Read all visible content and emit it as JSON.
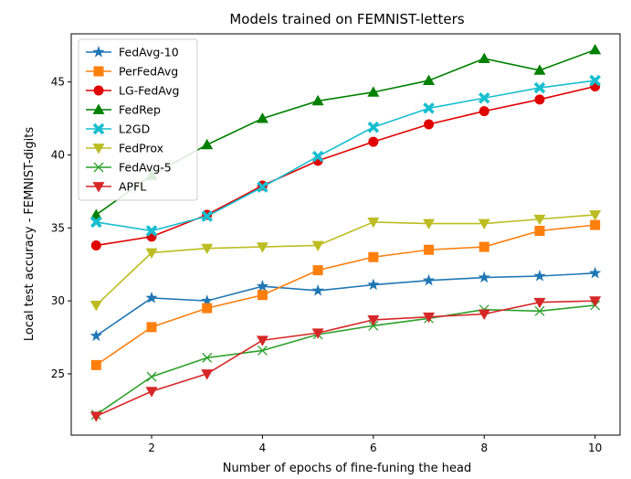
{
  "chart_data": {
    "type": "line",
    "title": "Models trained on FEMNIST-letters",
    "xlabel": "Number of epochs of fine-funing the head",
    "ylabel": "Local test accuracy - FEMNIST-digits",
    "x": [
      1,
      2,
      3,
      4,
      5,
      6,
      7,
      8,
      9,
      10
    ],
    "xlim": [
      0.55,
      10.45
    ],
    "ylim": [
      20.8,
      48.3
    ],
    "xticks": [
      2,
      4,
      6,
      8,
      10
    ],
    "yticks": [
      25,
      30,
      35,
      40,
      45
    ],
    "grid": false,
    "legend_position": "top-left",
    "series": [
      {
        "name": "FedAvg-10",
        "color": "#1f77b4",
        "marker": "star",
        "values": [
          27.6,
          30.2,
          30.0,
          31.0,
          30.7,
          31.1,
          31.4,
          31.6,
          31.7,
          31.9
        ]
      },
      {
        "name": "PerFedAvg",
        "color": "#ff7f0e",
        "marker": "square",
        "values": [
          25.6,
          28.2,
          29.5,
          30.4,
          32.1,
          33.0,
          33.5,
          33.7,
          34.8,
          35.2
        ]
      },
      {
        "name": "LG-FedAvg",
        "color": "#e00000",
        "marker": "circle",
        "values": [
          33.8,
          34.4,
          35.9,
          37.9,
          39.6,
          40.9,
          42.1,
          43.0,
          43.8,
          44.7
        ]
      },
      {
        "name": "FedRep",
        "color": "#008000",
        "marker": "triangle-up",
        "values": [
          35.9,
          38.6,
          40.7,
          42.5,
          43.7,
          44.3,
          45.1,
          46.6,
          45.8,
          47.2
        ]
      },
      {
        "name": "L2GD",
        "color": "#17becf",
        "marker": "x-thick",
        "values": [
          35.4,
          34.8,
          35.8,
          37.8,
          39.9,
          41.9,
          43.2,
          43.9,
          44.6,
          45.1
        ]
      },
      {
        "name": "FedProx",
        "color": "#bcbd22",
        "marker": "triangle-down",
        "values": [
          29.7,
          33.3,
          33.6,
          33.7,
          33.8,
          35.4,
          35.3,
          35.3,
          35.6,
          35.9
        ]
      },
      {
        "name": "FedAvg-5",
        "color": "#2ca02c",
        "marker": "x",
        "values": [
          22.2,
          24.8,
          26.1,
          26.6,
          27.7,
          28.3,
          28.8,
          29.4,
          29.3,
          29.7
        ]
      },
      {
        "name": "APFL",
        "color": "#d62728",
        "marker": "triangle-down",
        "values": [
          22.1,
          23.8,
          25.0,
          27.3,
          27.8,
          28.7,
          28.9,
          29.1,
          29.9,
          30.0
        ]
      }
    ]
  }
}
